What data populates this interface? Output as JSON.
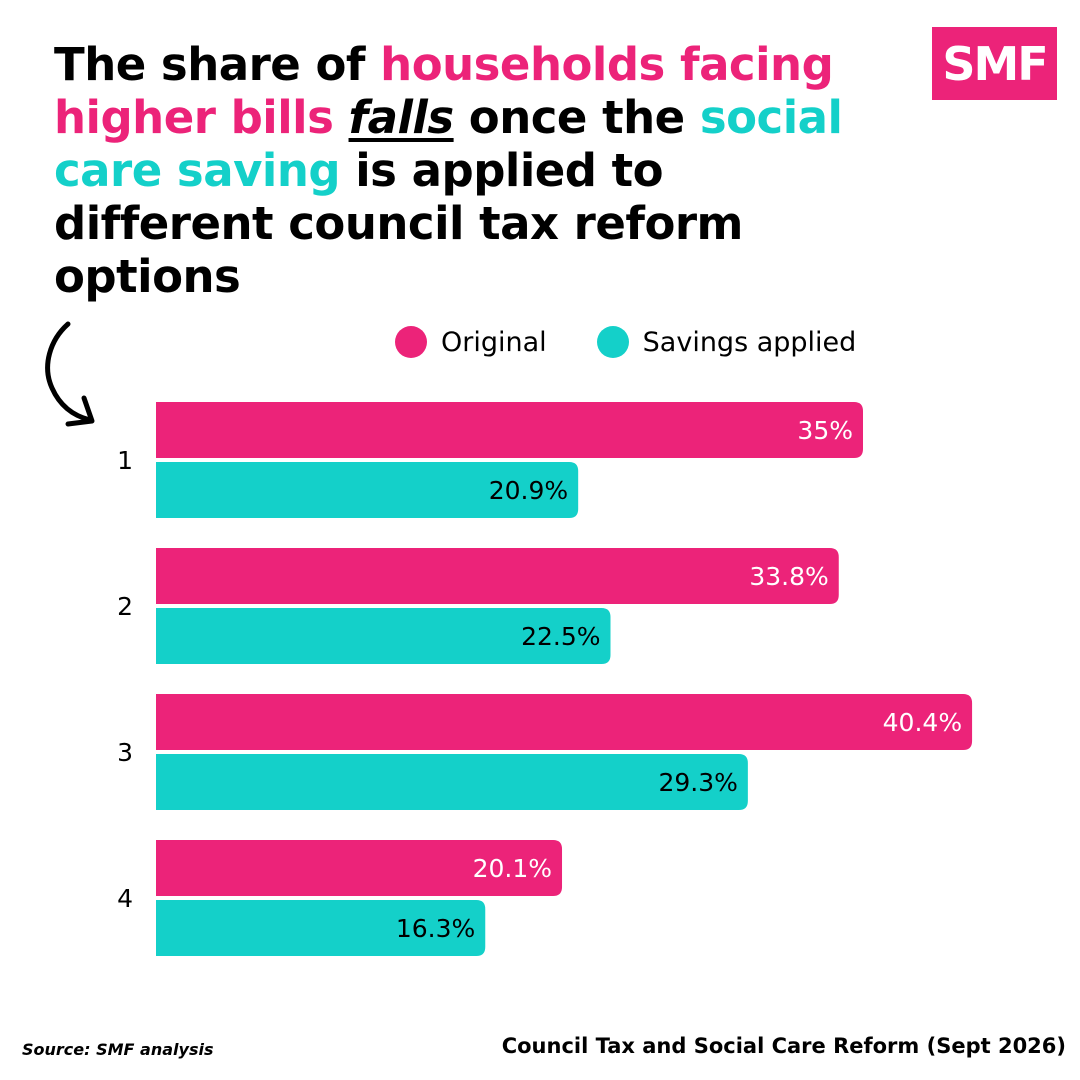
{
  "headline": {
    "p1": "The share of ",
    "p2": "households facing higher bills",
    "p3": " ",
    "p4": "falls",
    "p5": " once the ",
    "p6": "social care saving",
    "p7": " is applied to different council tax reform options"
  },
  "logo": "SMF",
  "icons": {
    "arrow": "curved-arrow-icon"
  },
  "colors": {
    "original": "#ec2379",
    "savings": "#14d0c9"
  },
  "chart_data": {
    "type": "bar",
    "orientation": "horizontal",
    "categories": [
      "1",
      "2",
      "3",
      "4"
    ],
    "series": [
      {
        "name": "Original",
        "values": [
          35,
          33.8,
          40.4,
          20.1
        ],
        "labels": [
          "35%",
          "33.8%",
          "40.4%",
          "20.1%"
        ]
      },
      {
        "name": "Savings applied",
        "values": [
          20.9,
          22.5,
          29.3,
          16.3
        ],
        "labels": [
          "20.9%",
          "22.5%",
          "29.3%",
          "16.3%"
        ]
      }
    ],
    "legend": "top",
    "grid": false,
    "data_labels": "inside-end"
  },
  "footer": {
    "source": "Source: SMF analysis",
    "report": "Council Tax and Social Care Reform (Sept 2026)"
  }
}
